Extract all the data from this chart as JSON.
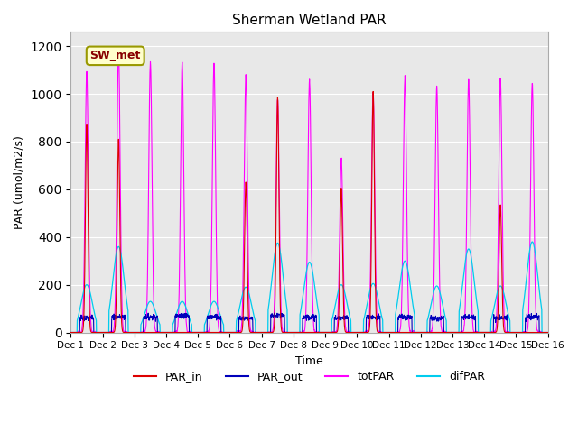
{
  "title": "Sherman Wetland PAR",
  "ylabel": "PAR (umol/m2/s)",
  "xlabel": "Time",
  "legend_label": "SW_met",
  "ylim": [
    0,
    1260
  ],
  "yticks": [
    0,
    200,
    400,
    600,
    800,
    1000,
    1200
  ],
  "n_days": 15,
  "points_per_day": 144,
  "bg_color": "#e8e8e8",
  "colors": {
    "PAR_in": "#dd0000",
    "PAR_out": "#0000bb",
    "totPAR": "#ff00ff",
    "difPAR": "#00ccee"
  },
  "totPAR_peaks": [
    1090,
    1190,
    1130,
    1130,
    1130,
    1080,
    980,
    1060,
    730,
    1010,
    1070,
    1030,
    1060,
    1060,
    1045
  ],
  "difPAR_peaks": [
    200,
    360,
    130,
    130,
    130,
    190,
    375,
    295,
    200,
    205,
    300,
    195,
    350,
    195,
    380
  ],
  "PAR_in_peaks": [
    870,
    810,
    0,
    0,
    0,
    630,
    985,
    0,
    605,
    1010,
    0,
    0,
    0,
    535,
    0
  ],
  "PAR_out_peaks": [
    60,
    65,
    65,
    70,
    65,
    60,
    70,
    65,
    60,
    65,
    65,
    60,
    65,
    60,
    65
  ],
  "legend_entries": [
    "PAR_in",
    "PAR_out",
    "totPAR",
    "difPAR"
  ]
}
